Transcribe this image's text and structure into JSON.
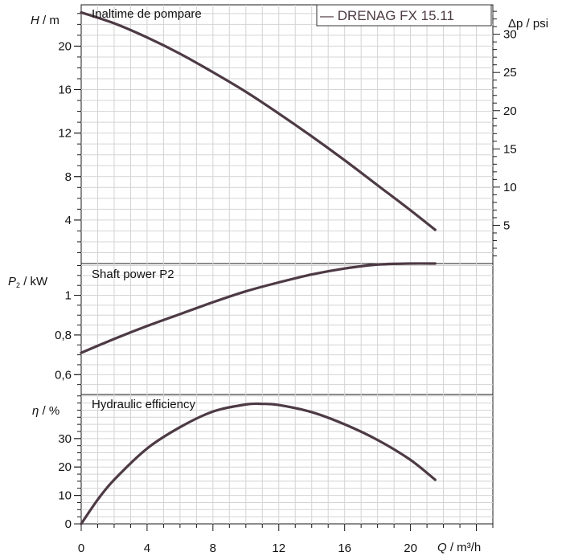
{
  "colors": {
    "curve": "#4d3a44",
    "text": "#111111",
    "grid": "#d4d4d4"
  },
  "legend": {
    "label": "— DRENAG FX 15.11"
  },
  "chart_data": [
    {
      "type": "line",
      "title": "Inaltime de pompare",
      "ylabel_sym": "H",
      "ylabel_unit": " / m",
      "ylim": [
        0,
        23.8
      ],
      "yticks": [
        4,
        8,
        12,
        16,
        20
      ],
      "ylabel_right_sym": "Δp",
      "ylabel_right_unit": " / psi",
      "yticks_right": [
        5,
        10,
        15,
        20,
        25,
        30
      ],
      "grid": true,
      "series": [
        {
          "name": "DRENAG FX 15.11",
          "x": [
            0,
            2,
            4,
            6,
            8,
            10,
            12,
            14,
            16,
            18,
            20,
            21.5
          ],
          "y": [
            23.1,
            22.1,
            20.8,
            19.3,
            17.6,
            15.8,
            13.8,
            11.7,
            9.5,
            7.2,
            4.9,
            3.1
          ]
        }
      ]
    },
    {
      "type": "line",
      "title": "Shaft power P2",
      "ylabel_sym": "P",
      "ylabel_sub": "2",
      "ylabel_unit": " / kW",
      "ylim": [
        0.5,
        1.16
      ],
      "yticks": [
        0.6,
        0.8,
        1
      ],
      "ytick_labels": [
        "0,6",
        "0,8",
        "1"
      ],
      "grid": true,
      "series": [
        {
          "name": "DRENAG FX 15.11",
          "x": [
            0,
            2,
            4,
            6,
            8,
            10,
            12,
            14,
            16,
            18,
            20,
            21.5
          ],
          "y": [
            0.71,
            0.78,
            0.845,
            0.905,
            0.965,
            1.02,
            1.065,
            1.105,
            1.135,
            1.155,
            1.16,
            1.16
          ]
        }
      ]
    },
    {
      "type": "line",
      "title": "Hydraulic efficiency",
      "ylabel_sym": "η",
      "ylabel_unit": " / %",
      "ylim": [
        0,
        45.5
      ],
      "yticks": [
        0,
        10,
        20,
        30
      ],
      "xlabel_sym": "Q",
      "xlabel_unit": " / m³/h",
      "xlim": [
        0,
        25
      ],
      "xticks": [
        0,
        4,
        8,
        12,
        16,
        20
      ],
      "grid": true,
      "series": [
        {
          "name": "DRENAG FX 15.11",
          "x": [
            0,
            1,
            2,
            4,
            6,
            8,
            10,
            11,
            12,
            14,
            16,
            18,
            20,
            21.5
          ],
          "y": [
            0,
            8.5,
            15.5,
            26.5,
            34,
            39.5,
            42,
            42.2,
            41.8,
            39.3,
            35,
            29.5,
            22.5,
            15.5
          ]
        }
      ]
    }
  ]
}
